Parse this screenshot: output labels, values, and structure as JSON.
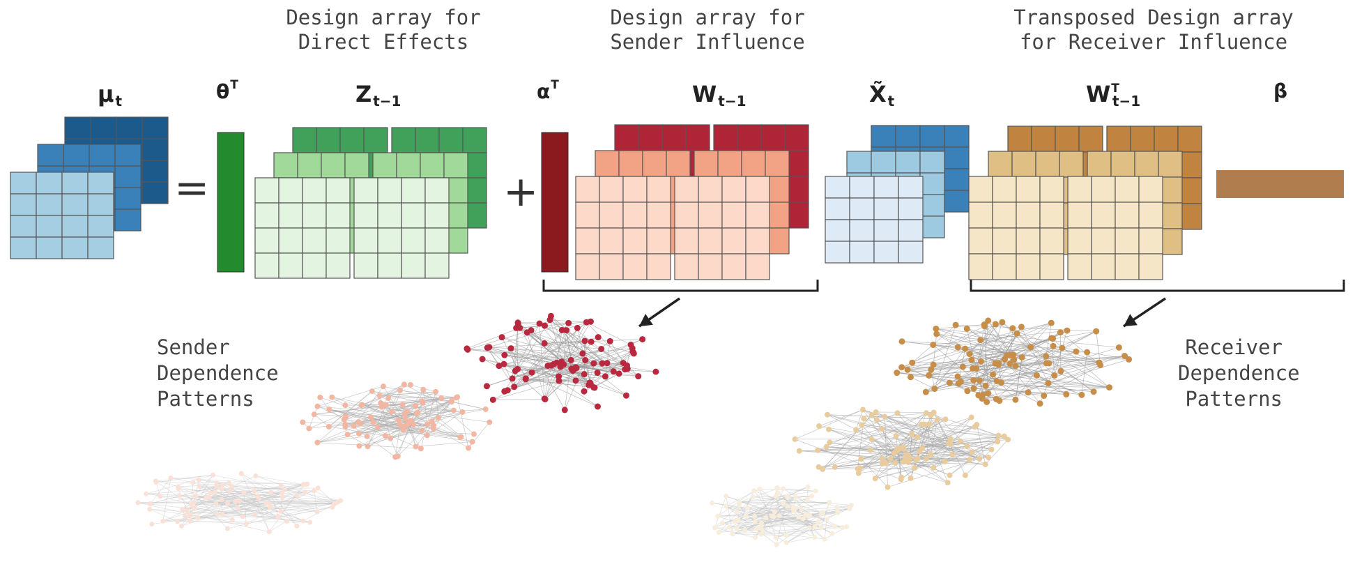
{
  "headers": {
    "direct_effects": [
      "Design array for",
      "Direct Effects"
    ],
    "sender_influence": [
      "Design array for",
      "Sender Influence"
    ],
    "receiver_influence": [
      "Transposed Design array",
      "for Receiver Influence"
    ]
  },
  "symbols": {
    "mu": {
      "base": "μ",
      "sub": "t",
      "sup": ""
    },
    "theta": {
      "base": "θ",
      "sub": "",
      "sup": "T"
    },
    "z": {
      "base": "Z",
      "sub": "t−1",
      "sup": ""
    },
    "alpha": {
      "base": "α",
      "sub": "",
      "sup": "T"
    },
    "w": {
      "base": "W",
      "sub": "t−1",
      "sup": ""
    },
    "xtilde": {
      "base": "X̃",
      "sub": "t",
      "sup": ""
    },
    "wt": {
      "base": "W",
      "sub": "t−1",
      "sup": "T"
    },
    "beta": {
      "base": "β",
      "sub": "",
      "sup": ""
    }
  },
  "operators": {
    "equals": "=",
    "plus": "+"
  },
  "side_labels": {
    "sender": [
      "Sender",
      "Dependence",
      "Patterns"
    ],
    "receiver": [
      "Receiver",
      "Dependence",
      "Patterns"
    ]
  },
  "colors": {
    "blue": [
      "#a6cee3",
      "#3a80b9",
      "#1b5a8a"
    ],
    "green": [
      "#e3f4e0",
      "#a1d99b",
      "#41a05a"
    ],
    "green_bar": "#238b2e",
    "red": [
      "#fcd9c9",
      "#f2a386",
      "#b02438"
    ],
    "red_bar": "#8b1a1f",
    "blue_light": [
      "#deebf7",
      "#9ecae1",
      "#3a80b9"
    ],
    "tan": [
      "#f5e6c8",
      "#e0bf85",
      "#c08440"
    ],
    "tan_bar": "#b07d4f",
    "network_red": [
      "#f7c9b7",
      "#f0a68c",
      "#b8283e"
    ],
    "network_tan": [
      "#f3e2c2",
      "#e4c48c",
      "#c78e4a"
    ]
  }
}
